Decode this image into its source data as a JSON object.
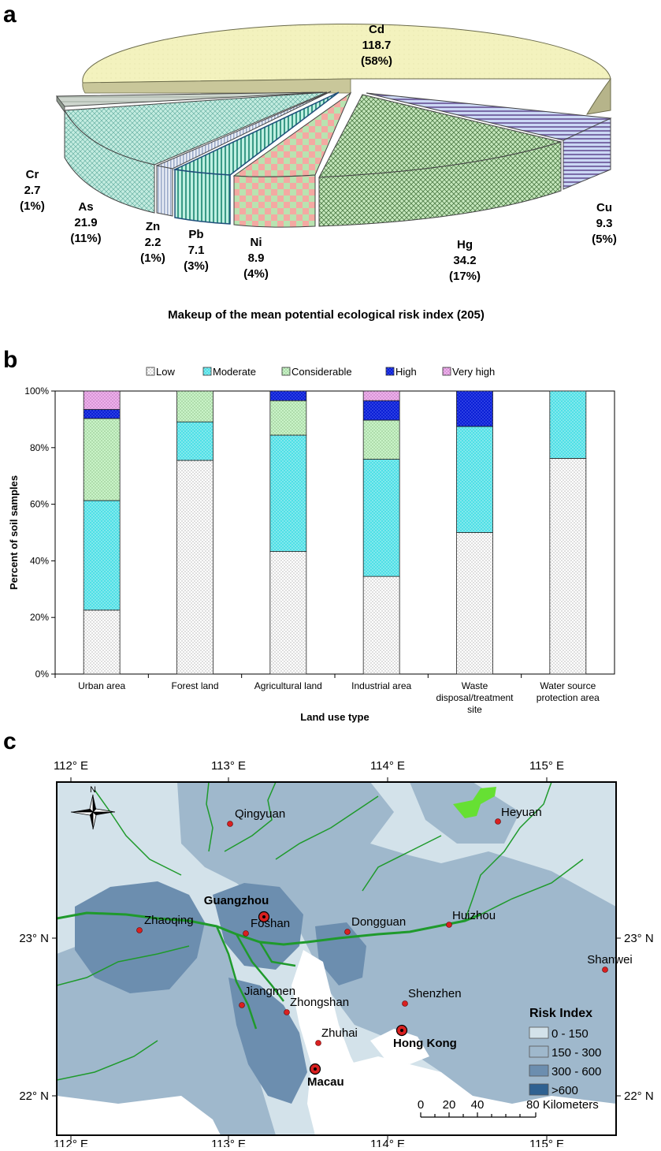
{
  "panels": {
    "a": "a",
    "b": "b",
    "c": "c"
  },
  "chart_data": [
    {
      "type": "pie",
      "title": "Makeup of the mean potential ecological risk index (205)",
      "slices": [
        {
          "label": "Cd",
          "value": 118.7,
          "percent": "(58%)",
          "value_text": "118.7",
          "color": "#f3f2be"
        },
        {
          "label": "Cu",
          "value": 9.3,
          "percent": "(5%)",
          "value_text": "9.3",
          "color": "#c9d6f2"
        },
        {
          "label": "Hg",
          "value": 34.2,
          "percent": "(17%)",
          "value_text": "34.2",
          "color": "#bfe6b8"
        },
        {
          "label": "Ni",
          "value": 8.9,
          "percent": "(4%)",
          "value_text": "8.9",
          "color": "#f2a6a6"
        },
        {
          "label": "Pb",
          "value": 7.1,
          "percent": "(3%)",
          "value_text": "7.1",
          "color": "#9fdfd0"
        },
        {
          "label": "Zn",
          "value": 2.2,
          "percent": "(1%)",
          "value_text": "2.2",
          "color": "#d7dfef"
        },
        {
          "label": "As",
          "value": 21.9,
          "percent": "(11%)",
          "value_text": "21.9",
          "color": "#b6e6da"
        },
        {
          "label": "Cr",
          "value": 2.7,
          "percent": "(1%)",
          "value_text": "2.7",
          "color": "#c8cfc8"
        }
      ]
    },
    {
      "type": "bar",
      "stacked": true,
      "xlabel": "Land use type",
      "ylabel": "Percent of soil samples",
      "ylim": [
        0,
        100
      ],
      "yticks": [
        "0%",
        "20%",
        "40%",
        "60%",
        "80%",
        "100%"
      ],
      "categories": [
        "Urban area",
        "Forest land",
        "Agricultural land",
        "Industrial area",
        "Waste disposal/treatment site",
        "Water source protection area"
      ],
      "category_lines": [
        [
          "Urban area"
        ],
        [
          "Forest land"
        ],
        [
          "Agricultural land"
        ],
        [
          "Industrial area"
        ],
        [
          "Waste",
          "disposal/treatment",
          "site"
        ],
        [
          "Water source",
          "protection area"
        ]
      ],
      "legend_position": "top",
      "series": [
        {
          "name": "Low",
          "color": "#ffffff",
          "values": [
            22.6,
            75.5,
            43.3,
            34.5,
            50.0,
            76.2
          ]
        },
        {
          "name": "Moderate",
          "color": "#4fe0e6",
          "values": [
            38.7,
            13.6,
            41.1,
            41.4,
            37.5,
            23.8
          ]
        },
        {
          "name": "Considerable",
          "color": "#bff0c0",
          "values": [
            29.0,
            10.9,
            12.2,
            13.8,
            0,
            0
          ]
        },
        {
          "name": "High",
          "color": "#0a1fd6",
          "values": [
            3.2,
            0,
            3.4,
            6.9,
            12.5,
            0
          ]
        },
        {
          "name": "Very high",
          "color": "#e9a0e6",
          "values": [
            6.5,
            0,
            0,
            3.4,
            0,
            0
          ]
        }
      ]
    }
  ],
  "map": {
    "lon_ticks": [
      "112° E",
      "113° E",
      "114° E",
      "115° E"
    ],
    "lat_ticks": [
      "23° N",
      "22° N"
    ],
    "north": "N",
    "cities": [
      {
        "name": "Qingyuan",
        "bold": false,
        "major": false
      },
      {
        "name": "Heyuan",
        "bold": false,
        "major": false
      },
      {
        "name": "Guangzhou",
        "bold": true,
        "major": true
      },
      {
        "name": "Zhaoqing",
        "bold": false,
        "major": false
      },
      {
        "name": "Foshan",
        "bold": false,
        "major": false
      },
      {
        "name": "Dongguan",
        "bold": false,
        "major": false
      },
      {
        "name": "Huizhou",
        "bold": false,
        "major": false
      },
      {
        "name": "Shanwei",
        "bold": false,
        "major": false
      },
      {
        "name": "Jiangmen",
        "bold": false,
        "major": false
      },
      {
        "name": "Zhongshan",
        "bold": false,
        "major": false
      },
      {
        "name": "Shenzhen",
        "bold": false,
        "major": false
      },
      {
        "name": "Hong Kong",
        "bold": true,
        "major": true
      },
      {
        "name": "Zhuhai",
        "bold": false,
        "major": false
      },
      {
        "name": "Macau",
        "bold": true,
        "major": true
      }
    ],
    "legend": {
      "title": "Risk Index",
      "classes": [
        {
          "label": "0 - 150",
          "color": "#d3e2ea"
        },
        {
          "label": "150 - 300",
          "color": "#9fb8cc"
        },
        {
          "label": "300 - 600",
          "color": "#6c8eaf"
        },
        {
          "label": ">600",
          "color": "#2f6191"
        }
      ]
    },
    "scale_bar": [
      "0",
      "20",
      "40",
      "80 Kilometers"
    ],
    "colors": {
      "water": "#ffffff",
      "river": "#1f9a2c",
      "reservoir": "#66e033",
      "city": "#d92020"
    }
  }
}
